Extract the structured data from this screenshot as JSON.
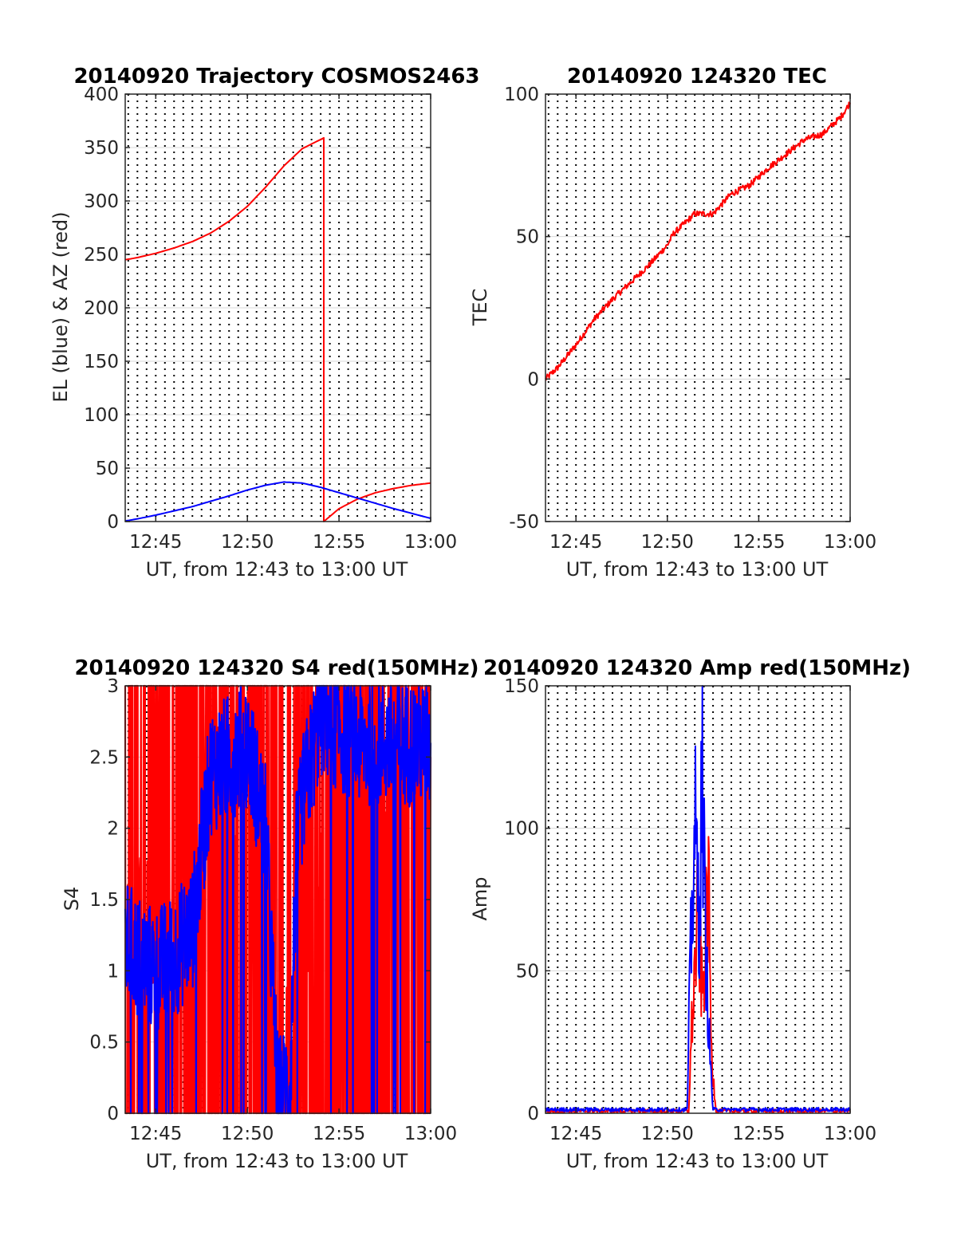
{
  "colors": {
    "el": "#0000ff",
    "az": "#ff0000",
    "red": "#ff0000",
    "blue": "#0000ff",
    "hgrid": "#d9d9d9",
    "vgrid": "#000000",
    "axis": "#262626"
  },
  "chart_data": [
    {
      "type": "line",
      "title": "20140920 Trajectory COSMOS2463",
      "xlabel": "UT, from 12:43 to 13:00 UT",
      "ylabel": "EL (blue) & AZ (red)",
      "xlim": [
        "12:43:20",
        "13:00:00"
      ],
      "ylim": [
        0,
        400
      ],
      "xticks": [
        "12:45",
        "12:50",
        "12:55",
        "13:00"
      ],
      "yticks": [
        "0",
        "50",
        "100",
        "150",
        "200",
        "250",
        "300",
        "350",
        "400"
      ],
      "grid": "horizontal solid, vertical dotted every 30 s",
      "series": [
        {
          "color": "red",
          "x": [
            "12:43:20",
            "12:44:00",
            "12:45:00",
            "12:46:00",
            "12:47:00",
            "12:48:00",
            "12:49:00",
            "12:50:00",
            "12:51:00",
            "12:52:00",
            "12:53:00",
            "12:54:10",
            "12:54:10",
            "12:55:00",
            "12:56:00",
            "12:57:00",
            "12:58:00",
            "12:59:00",
            "13:00:00"
          ],
          "y": [
            245,
            247,
            251,
            256,
            262,
            270,
            281,
            295,
            313,
            333,
            349,
            359,
            0,
            12,
            21,
            27,
            31,
            34,
            36
          ]
        },
        {
          "color": "blue",
          "x": [
            "12:43:20",
            "12:44:00",
            "12:45:00",
            "12:46:00",
            "12:47:00",
            "12:48:00",
            "12:49:00",
            "12:50:00",
            "12:51:00",
            "12:52:00",
            "12:53:00",
            "12:54:00",
            "12:55:00",
            "12:56:00",
            "12:57:00",
            "12:58:00",
            "12:59:00",
            "13:00:00"
          ],
          "y": [
            0.5,
            2.5,
            6,
            10,
            14,
            19,
            24,
            29.5,
            34,
            37,
            36,
            32,
            27,
            22,
            17,
            12,
            7.5,
            3
          ]
        }
      ]
    },
    {
      "type": "line",
      "title": "20140920 124320 TEC",
      "xlabel": "UT, from 12:43 to 13:00 UT",
      "ylabel": "TEC",
      "xlim": [
        "12:43:20",
        "13:00:00"
      ],
      "ylim": [
        -50,
        100
      ],
      "xticks": [
        "12:45",
        "12:50",
        "12:55",
        "13:00"
      ],
      "yticks": [
        "-50",
        "0",
        "50",
        "100"
      ],
      "series": [
        {
          "color": "red",
          "x": [
            "12:43:20",
            "12:44:00",
            "12:45:00",
            "12:46:00",
            "12:47:00",
            "12:48:00",
            "12:49:00",
            "12:50:00",
            "12:50:20",
            "12:51:30",
            "12:52:30",
            "12:53:30",
            "12:54:30",
            "12:55:30",
            "12:56:30",
            "12:57:30",
            "12:58:30",
            "12:59:30",
            "13:00:00"
          ],
          "y": [
            0,
            4,
            12,
            21,
            28,
            34,
            40,
            47,
            51,
            58,
            58,
            65,
            68,
            74,
            79,
            84,
            86,
            92,
            97
          ]
        }
      ]
    },
    {
      "type": "line",
      "title": "20140920 124320 S4 red(150MHz)",
      "xlabel": "UT, from 12:43 to 13:00 UT",
      "ylabel": "S4",
      "xlim": [
        "12:43:20",
        "13:00:00"
      ],
      "ylim": [
        0,
        3
      ],
      "xticks": [
        "12:45",
        "12:50",
        "12:55",
        "13:00"
      ],
      "yticks": [
        "0",
        "0.5",
        "1",
        "1.5",
        "2",
        "2.5",
        "3"
      ],
      "series": [
        {
          "color": "red",
          "note": "noisy, frequently saturating 0–3",
          "x": [
            "12:43:20",
            "12:45:00",
            "12:47:00",
            "12:48:20",
            "12:49:00",
            "12:50:00",
            "12:51:00",
            "12:51:40",
            "12:52:30",
            "12:53:30",
            "12:55:00",
            "12:57:00",
            "13:00:00"
          ],
          "y": [
            1.5,
            1.5,
            1.5,
            2.8,
            2.3,
            2.0,
            1.3,
            0.1,
            0.6,
            1.8,
            2.2,
            2.5,
            2.5
          ]
        },
        {
          "color": "blue",
          "x": [
            "12:43:20",
            "12:44:00",
            "12:45:00",
            "12:46:00",
            "12:47:00",
            "12:48:00",
            "12:49:00",
            "12:50:00",
            "12:51:00",
            "12:51:40",
            "12:52:20",
            "12:52:40",
            "12:53:00",
            "12:54:00",
            "12:56:00",
            "12:58:00",
            "13:00:00"
          ],
          "y": [
            1.2,
            1.1,
            1.0,
            1.1,
            1.3,
            2.4,
            2.5,
            2.6,
            2.0,
            0.1,
            0.2,
            1.8,
            2.2,
            2.8,
            2.6,
            2.6,
            2.6
          ]
        }
      ]
    },
    {
      "type": "line",
      "title": "20140920 124320 Amp red(150MHz)",
      "xlabel": "UT, from 12:43 to 13:00 UT",
      "ylabel": "Amp",
      "xlim": [
        "12:43:20",
        "13:00:00"
      ],
      "ylim": [
        0,
        150
      ],
      "xticks": [
        "12:45",
        "12:50",
        "12:55",
        "13:00"
      ],
      "yticks": [
        "0",
        "50",
        "100",
        "150"
      ],
      "series": [
        {
          "color": "red",
          "x": [
            "12:43:20",
            "12:51:10",
            "12:51:20",
            "12:51:40",
            "12:51:55",
            "12:52:05",
            "12:52:15",
            "12:52:25",
            "12:52:40",
            "13:00:00"
          ],
          "y": [
            0.5,
            0.5,
            30,
            70,
            40,
            60,
            80,
            20,
            0.5,
            0.5
          ]
        },
        {
          "color": "blue",
          "x": [
            "12:43:20",
            "12:51:05",
            "12:51:15",
            "12:51:30",
            "12:51:45",
            "12:51:55",
            "12:52:05",
            "12:52:20",
            "12:52:30",
            "13:00:00"
          ],
          "y": [
            1,
            1,
            50,
            100,
            70,
            120,
            60,
            20,
            1,
            1
          ]
        }
      ]
    }
  ]
}
